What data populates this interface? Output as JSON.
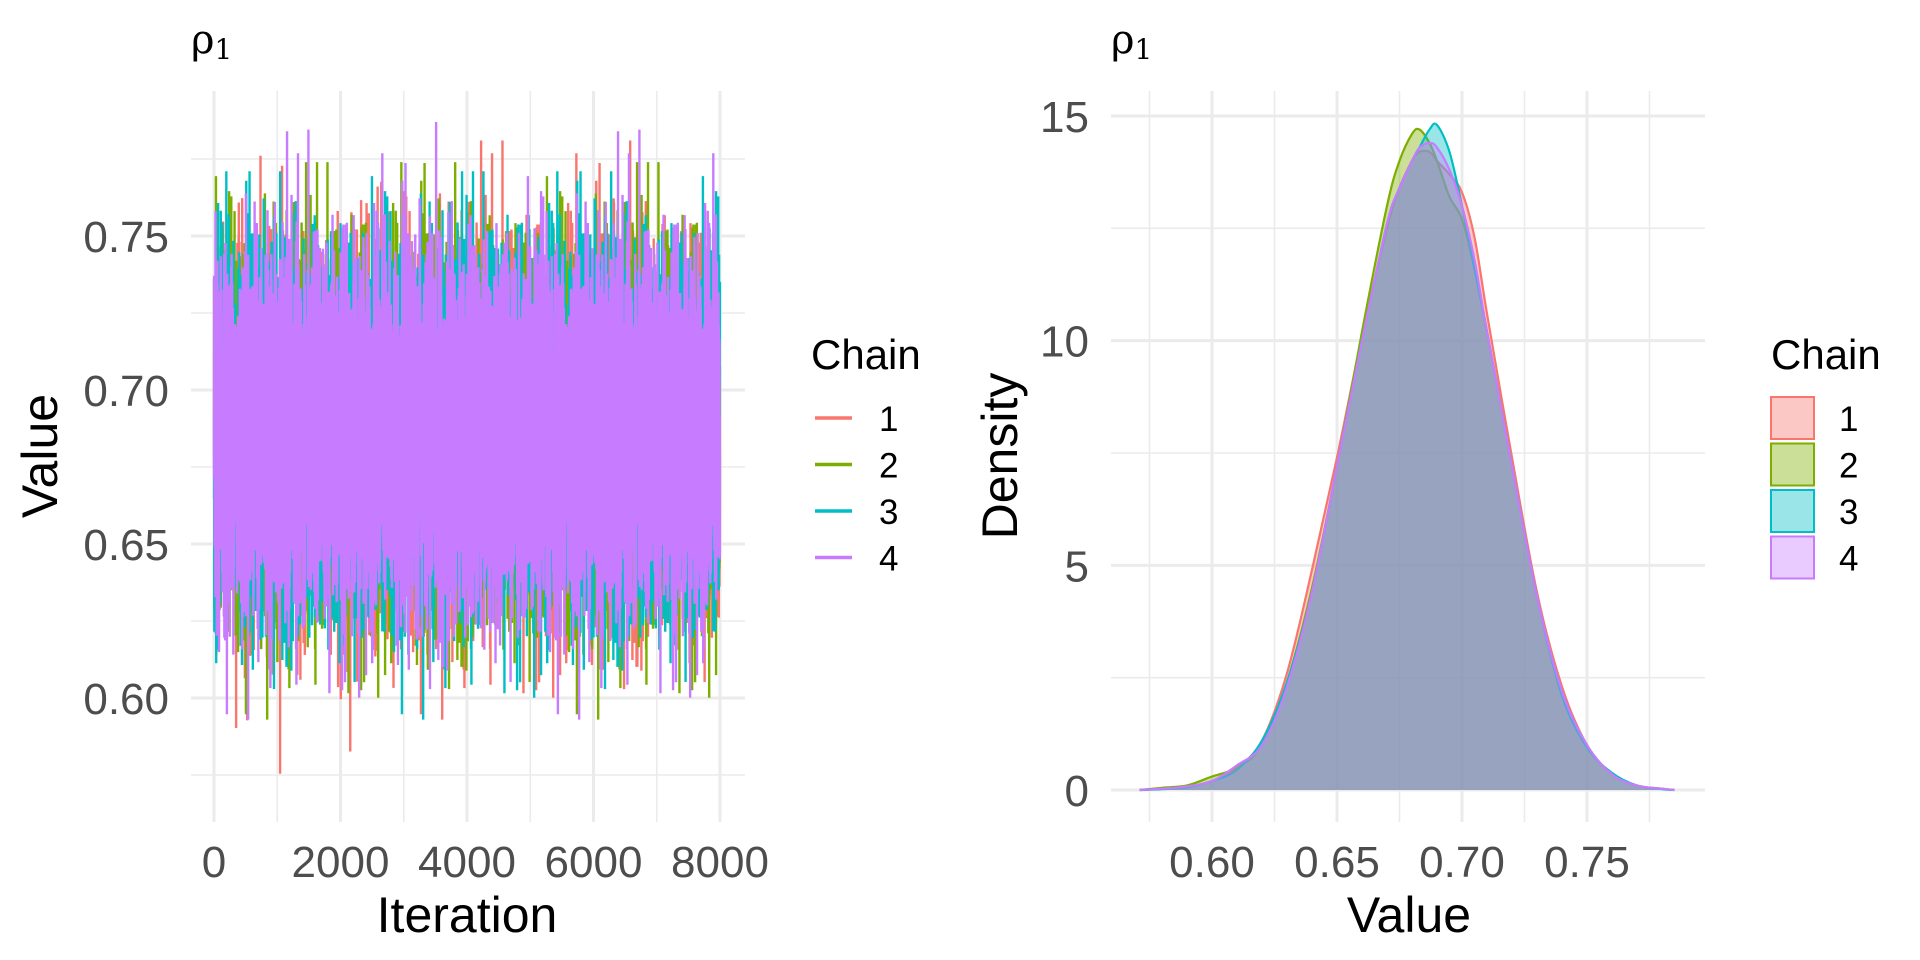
{
  "chart_data": [
    {
      "type": "line",
      "title": "ρ",
      "title_sub": "1",
      "xlabel": "Iteration",
      "ylabel": "Value",
      "xlim": [
        0,
        8000
      ],
      "ylim": [
        0.56,
        0.797
      ],
      "xticks": [
        0,
        2000,
        4000,
        6000,
        8000
      ],
      "xtick_labels": [
        "0",
        "2000",
        "4000",
        "6000",
        "8000"
      ],
      "yticks": [
        0.6,
        0.65,
        0.7,
        0.75
      ],
      "ytick_labels": [
        "0.60",
        "0.65",
        "0.70",
        "0.75"
      ],
      "grid": true,
      "legend": {
        "title": "Chain",
        "position": "right",
        "entries": [
          "1",
          "2",
          "3",
          "4"
        ]
      },
      "series": [
        {
          "name": "1",
          "color": "#F8766D",
          "n_iterations": 8000,
          "mean": 0.686,
          "min": 0.57,
          "max": 0.781
        },
        {
          "name": "2",
          "color": "#7CAE00",
          "n_iterations": 8000,
          "mean": 0.686,
          "min": 0.574,
          "max": 0.774
        },
        {
          "name": "3",
          "color": "#00BFC4",
          "n_iterations": 8000,
          "mean": 0.686,
          "min": 0.582,
          "max": 0.771
        },
        {
          "name": "4",
          "color": "#C77CFF",
          "n_iterations": 8000,
          "mean": 0.686,
          "min": 0.578,
          "max": 0.787
        }
      ]
    },
    {
      "type": "area",
      "title": "ρ",
      "title_sub": "1",
      "xlabel": "Value",
      "ylabel": "Density",
      "xlim": [
        0.56,
        0.797
      ],
      "ylim": [
        0,
        15.5
      ],
      "xticks": [
        0.6,
        0.65,
        0.7,
        0.75
      ],
      "xtick_labels": [
        "0.60",
        "0.65",
        "0.70",
        "0.75"
      ],
      "yticks": [
        0,
        5,
        10,
        15
      ],
      "ytick_labels": [
        "0",
        "5",
        "10",
        "15"
      ],
      "grid": true,
      "fill_alpha": 0.4,
      "legend": {
        "title": "Chain",
        "position": "right",
        "entries": [
          "1",
          "2",
          "3",
          "4"
        ]
      },
      "x": [
        0.571,
        0.58,
        0.59,
        0.6,
        0.61,
        0.62,
        0.63,
        0.64,
        0.65,
        0.66,
        0.67,
        0.675,
        0.68,
        0.683,
        0.687,
        0.69,
        0.695,
        0.7,
        0.705,
        0.71,
        0.72,
        0.73,
        0.74,
        0.75,
        0.76,
        0.77,
        0.78,
        0.785
      ],
      "series": [
        {
          "name": "1",
          "color": "#F8766D",
          "values": [
            0,
            0.03,
            0.07,
            0.2,
            0.5,
            1.1,
            2.6,
            4.9,
            7.4,
            10.1,
            12.5,
            13.4,
            14.0,
            14.2,
            14.2,
            14.0,
            13.7,
            13.3,
            12.3,
            10.6,
            7.4,
            4.4,
            2.3,
            1.0,
            0.35,
            0.1,
            0.03,
            0
          ]
        },
        {
          "name": "2",
          "color": "#7CAE00",
          "values": [
            0,
            0.05,
            0.1,
            0.3,
            0.5,
            1.0,
            2.4,
            4.5,
            7.2,
            10.2,
            13.0,
            14.0,
            14.6,
            14.7,
            14.4,
            14.0,
            13.2,
            12.7,
            11.6,
            10.2,
            7.2,
            4.3,
            2.2,
            1.0,
            0.35,
            0.1,
            0.03,
            0
          ]
        },
        {
          "name": "3",
          "color": "#00BFC4",
          "values": [
            0,
            0.02,
            0.06,
            0.2,
            0.45,
            1.1,
            2.4,
            4.4,
            7.2,
            10.0,
            12.6,
            13.4,
            14.0,
            14.3,
            14.7,
            14.8,
            14.2,
            13.0,
            11.6,
            10.2,
            7.2,
            4.3,
            2.1,
            0.95,
            0.38,
            0.1,
            0.02,
            0
          ]
        },
        {
          "name": "4",
          "color": "#C77CFF",
          "values": [
            0,
            0.03,
            0.08,
            0.2,
            0.55,
            1.0,
            2.3,
            4.4,
            7.2,
            10.0,
            12.6,
            13.4,
            14.0,
            14.3,
            14.4,
            14.3,
            13.8,
            13.0,
            11.8,
            10.2,
            7.2,
            4.3,
            2.2,
            1.0,
            0.35,
            0.1,
            0.03,
            0
          ]
        }
      ]
    }
  ]
}
